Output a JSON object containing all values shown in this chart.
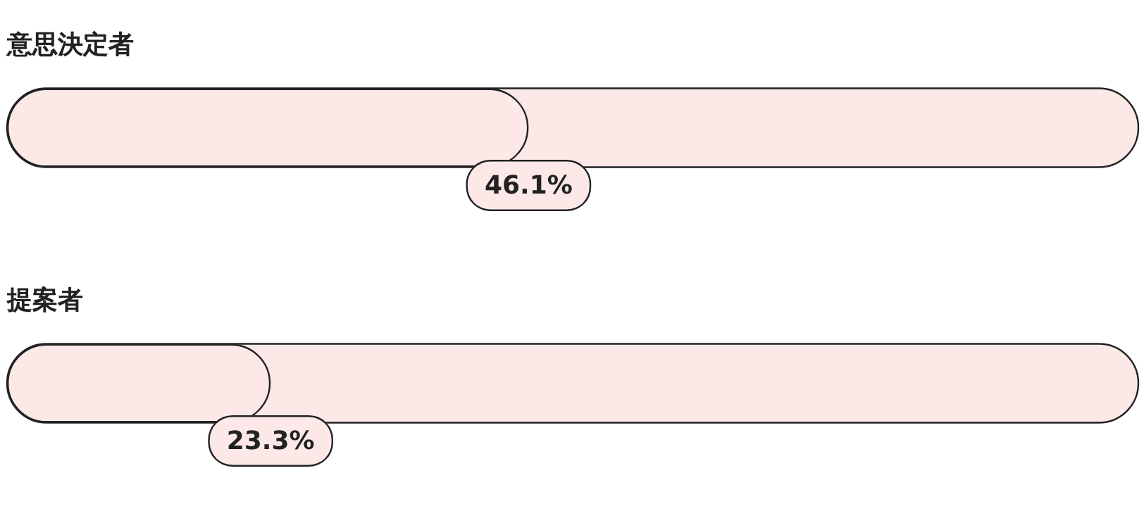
{
  "chart_data": {
    "type": "bar",
    "orientation": "horizontal",
    "categories": [
      "意思決定者",
      "提案者"
    ],
    "values": [
      46.1,
      23.3
    ],
    "value_labels": [
      "46.1%",
      "23.3%"
    ],
    "color": "#fde8e8",
    "xlim": [
      0,
      100
    ],
    "tick_labels": false
  }
}
